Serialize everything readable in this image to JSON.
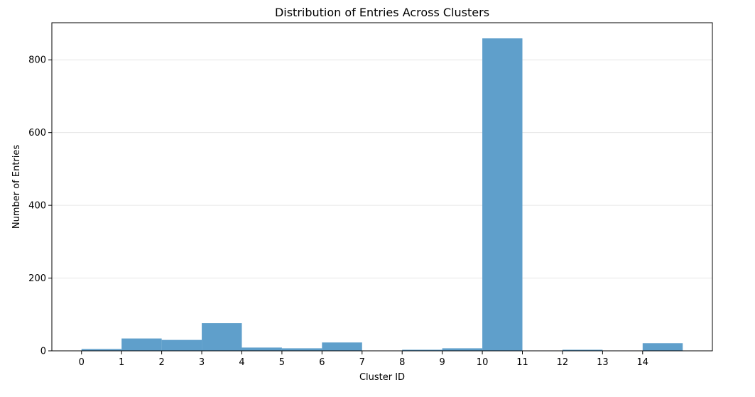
{
  "chart_data": {
    "type": "bar",
    "title": "Distribution of Entries Across Clusters",
    "xlabel": "Cluster ID",
    "ylabel": "Number of Entries",
    "x_ticks": [
      "0",
      "1",
      "2",
      "3",
      "4",
      "5",
      "6",
      "7",
      "8",
      "9",
      "10",
      "11",
      "12",
      "13",
      "14"
    ],
    "bins": [
      {
        "start": 0,
        "end": 1,
        "value": 5
      },
      {
        "start": 1,
        "end": 2,
        "value": 34
      },
      {
        "start": 2,
        "end": 3,
        "value": 30
      },
      {
        "start": 3,
        "end": 4,
        "value": 76
      },
      {
        "start": 4,
        "end": 5,
        "value": 9
      },
      {
        "start": 5,
        "end": 6,
        "value": 7
      },
      {
        "start": 6,
        "end": 7,
        "value": 23
      },
      {
        "start": 7,
        "end": 8,
        "value": 1
      },
      {
        "start": 8,
        "end": 9,
        "value": 3
      },
      {
        "start": 9,
        "end": 10,
        "value": 7
      },
      {
        "start": 10,
        "end": 11,
        "value": 859
      },
      {
        "start": 11,
        "end": 12,
        "value": 1
      },
      {
        "start": 12,
        "end": 13,
        "value": 3
      },
      {
        "start": 13,
        "end": 14,
        "value": 1
      },
      {
        "start": 14,
        "end": 15,
        "value": 21
      }
    ],
    "y_ticks": [
      0,
      200,
      400,
      600,
      800
    ],
    "xlim": [
      -0.74,
      15.74
    ],
    "ylim": [
      0,
      902
    ],
    "grid": "y",
    "bar_color": "#5f9fcb",
    "grid_color": "#e6e6e6"
  }
}
